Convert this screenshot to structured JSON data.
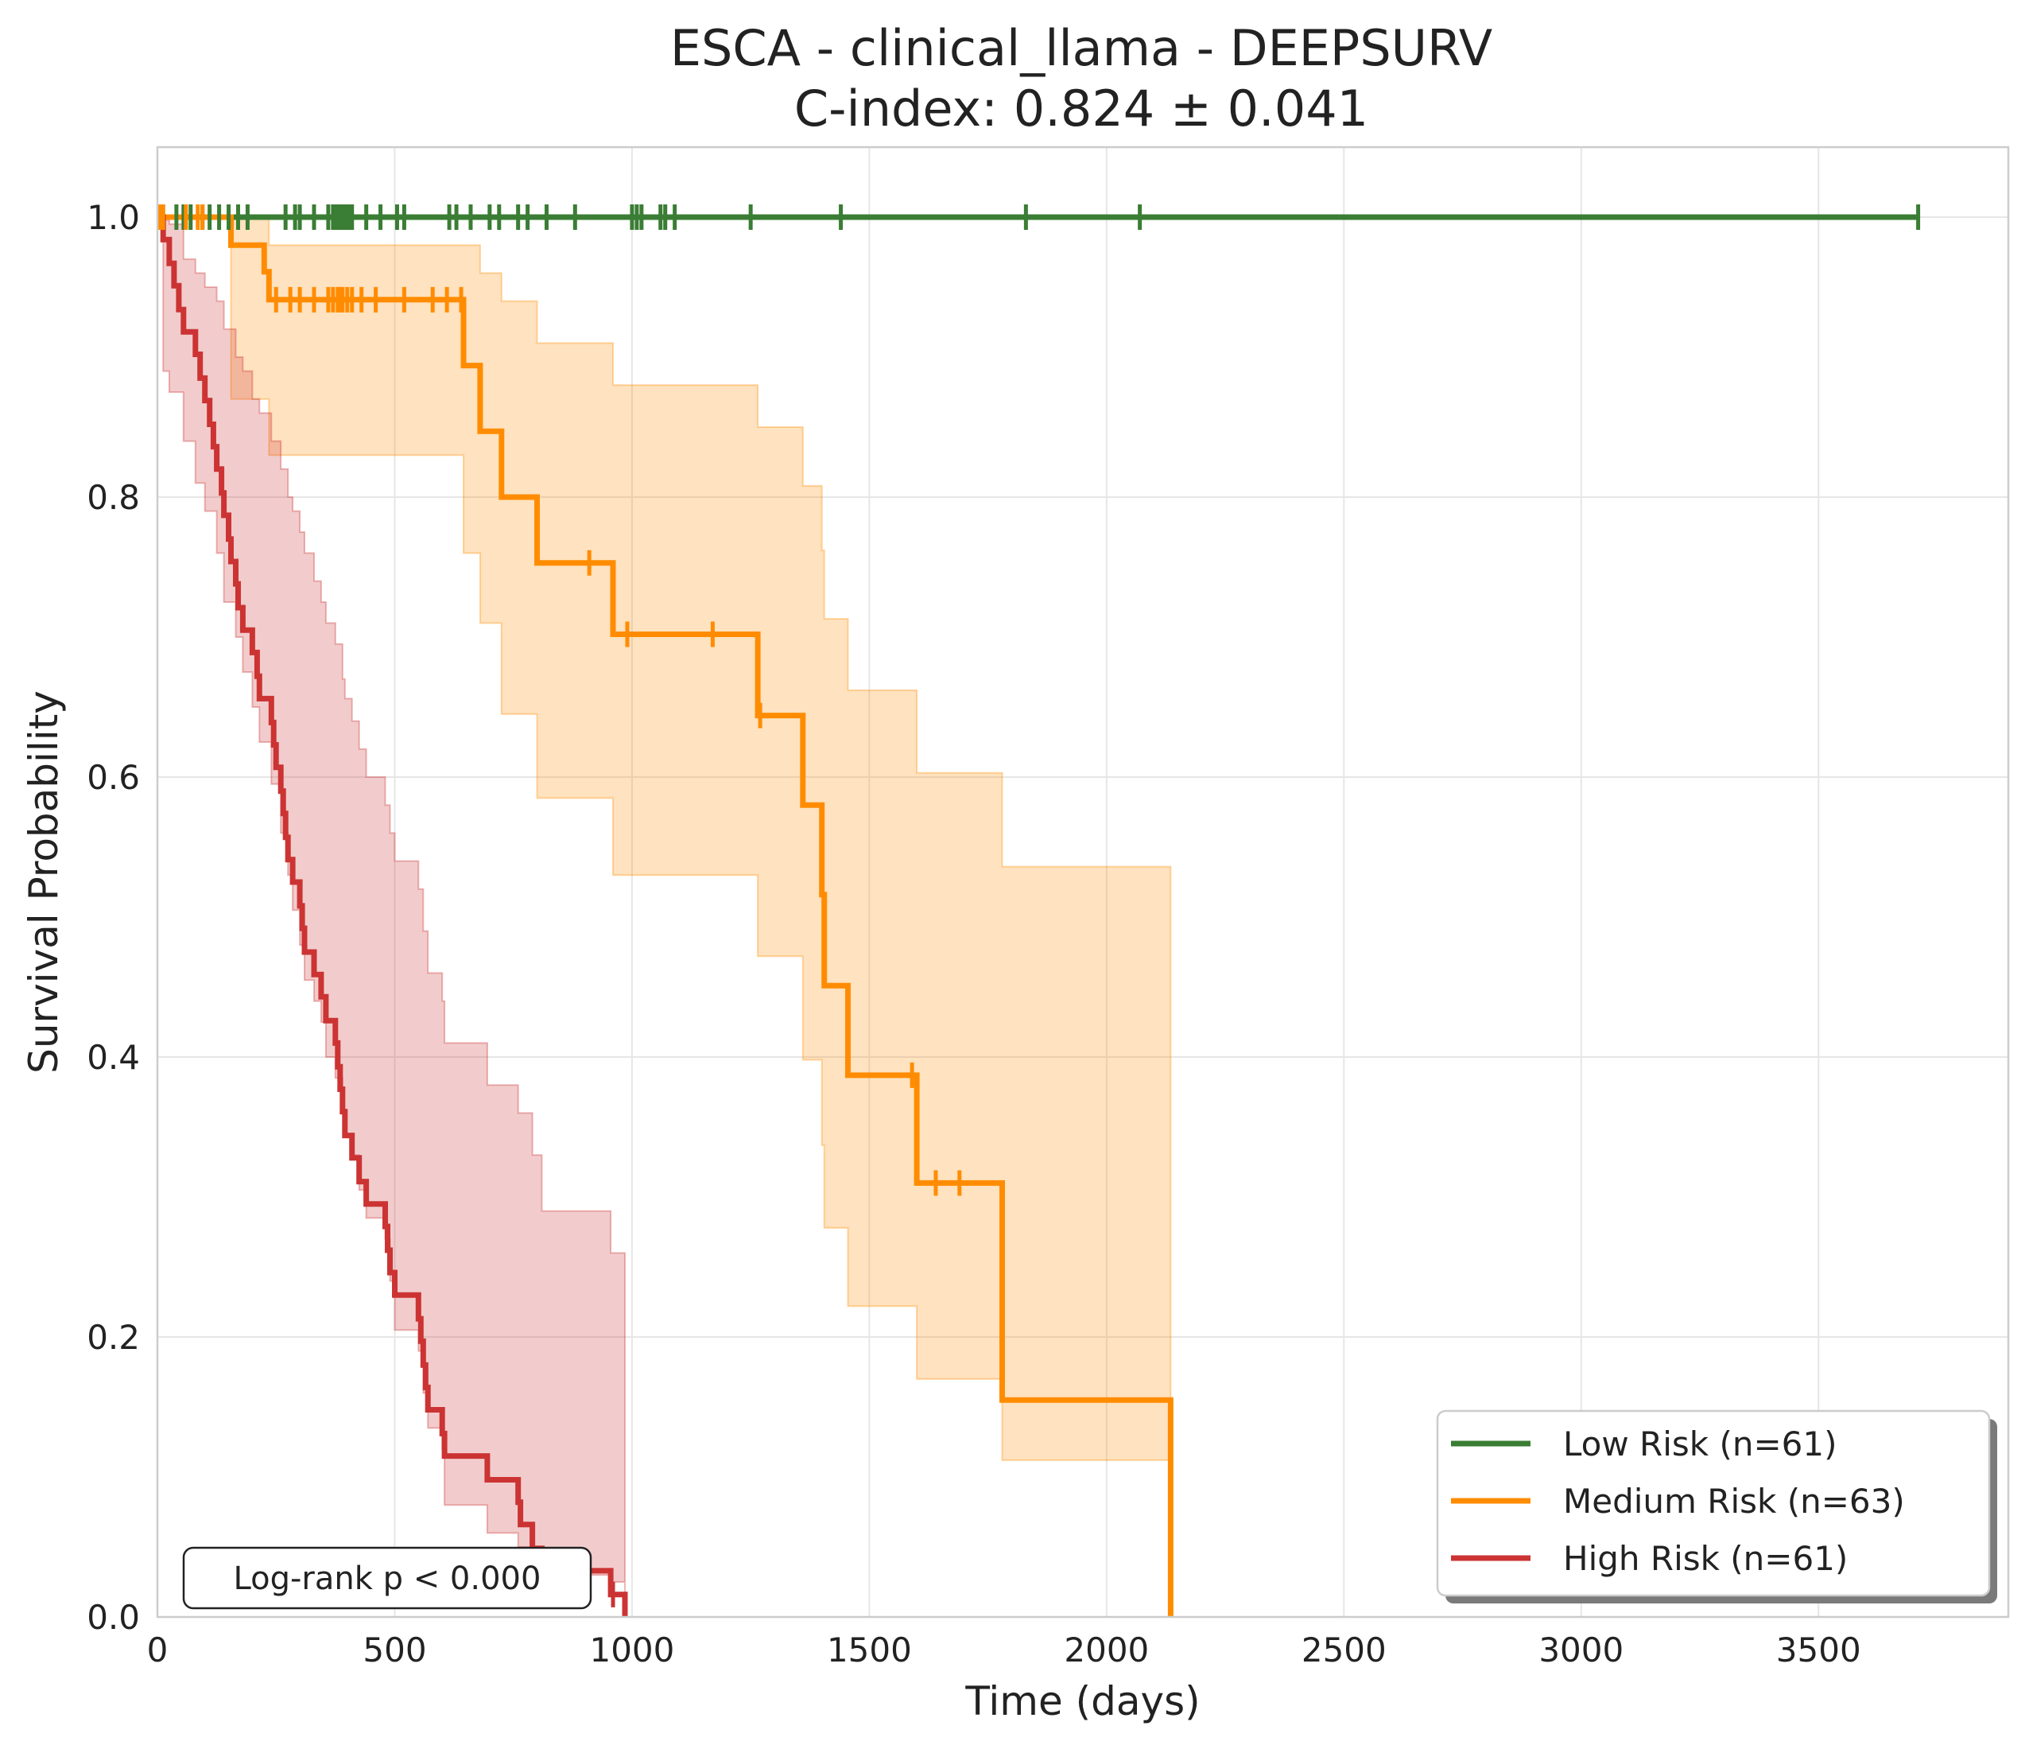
{
  "chart_data": {
    "type": "line",
    "subtype": "kaplan-meier",
    "title_line1": "ESCA - clinical_llama - DEEPSURV",
    "title_line2": "C-index: 0.824 ± 0.041",
    "xlabel": "Time (days)",
    "ylabel": "Survival Probability",
    "xlim": [
      0,
      3900
    ],
    "ylim": [
      0,
      1.05
    ],
    "xticks": [
      0,
      500,
      1000,
      1500,
      2000,
      2500,
      3000,
      3500
    ],
    "yticks": [
      0.0,
      0.2,
      0.4,
      0.6,
      0.8,
      1.0
    ],
    "xtick_labels": [
      "0",
      "500",
      "1000",
      "1500",
      "2000",
      "2500",
      "3000",
      "3500"
    ],
    "ytick_labels": [
      "0.0",
      "0.2",
      "0.4",
      "0.6",
      "0.8",
      "1.0"
    ],
    "grid": true,
    "legend_position": "lower right",
    "annotation": "Log-rank p < 0.000",
    "series": [
      {
        "name": "Low Risk (n=61)",
        "color": "#3a7d34",
        "steps": [
          [
            0,
            1.0
          ],
          [
            3710,
            1.0
          ]
        ],
        "ci": [],
        "censor_times": [
          5,
          12,
          40,
          55,
          70,
          95,
          110,
          130,
          150,
          170,
          190,
          270,
          290,
          300,
          330,
          360,
          370,
          375,
          380,
          385,
          390,
          395,
          400,
          405,
          410,
          440,
          470,
          505,
          520,
          615,
          630,
          660,
          700,
          720,
          760,
          780,
          820,
          880,
          1000,
          1010,
          1020,
          1060,
          1070,
          1090,
          1250,
          1440,
          1830,
          2070,
          3710
        ]
      },
      {
        "name": "Medium Risk (n=63)",
        "color": "#ff8c00",
        "steps": [
          [
            0,
            1.0
          ],
          [
            155,
            1.0
          ],
          [
            155,
            0.98
          ],
          [
            225,
            0.98
          ],
          [
            225,
            0.961
          ],
          [
            235,
            0.961
          ],
          [
            235,
            0.941
          ],
          [
            645,
            0.941
          ],
          [
            645,
            0.894
          ],
          [
            680,
            0.894
          ],
          [
            680,
            0.847
          ],
          [
            725,
            0.847
          ],
          [
            725,
            0.8
          ],
          [
            800,
            0.8
          ],
          [
            800,
            0.753
          ],
          [
            960,
            0.753
          ],
          [
            960,
            0.702
          ],
          [
            1265,
            0.702
          ],
          [
            1265,
            0.644
          ],
          [
            1360,
            0.644
          ],
          [
            1360,
            0.58
          ],
          [
            1400,
            0.58
          ],
          [
            1400,
            0.516
          ],
          [
            1405,
            0.516
          ],
          [
            1405,
            0.451
          ],
          [
            1455,
            0.451
          ],
          [
            1455,
            0.387
          ],
          [
            1600,
            0.387
          ],
          [
            1600,
            0.31
          ],
          [
            1780,
            0.31
          ],
          [
            1780,
            0.155
          ],
          [
            2135,
            0.155
          ],
          [
            2135,
            0.0
          ]
        ],
        "ci": [
          [
            0,
            1.0,
            1.0
          ],
          [
            155,
            0.87,
            1.0
          ],
          [
            235,
            0.83,
            0.98
          ],
          [
            645,
            0.76,
            0.98
          ],
          [
            680,
            0.71,
            0.96
          ],
          [
            725,
            0.645,
            0.94
          ],
          [
            800,
            0.585,
            0.91
          ],
          [
            960,
            0.53,
            0.88
          ],
          [
            1265,
            0.472,
            0.85
          ],
          [
            1360,
            0.398,
            0.808
          ],
          [
            1400,
            0.337,
            0.762
          ],
          [
            1405,
            0.278,
            0.713
          ],
          [
            1455,
            0.222,
            0.662
          ],
          [
            1600,
            0.17,
            0.603
          ],
          [
            1780,
            0.112,
            0.536
          ],
          [
            2135,
            0.015,
            0.448
          ]
        ],
        "censor_times": [
          5,
          12,
          60,
          85,
          95,
          250,
          280,
          300,
          330,
          360,
          370,
          380,
          385,
          390,
          400,
          410,
          430,
          460,
          520,
          580,
          610,
          640,
          910,
          990,
          1170,
          1270,
          1590,
          1640,
          1690
        ]
      },
      {
        "name": "High Risk (n=61)",
        "color": "#cc3333",
        "steps": [
          [
            0,
            1.0
          ],
          [
            12,
            1.0
          ],
          [
            12,
            0.984
          ],
          [
            25,
            0.984
          ],
          [
            25,
            0.967
          ],
          [
            35,
            0.967
          ],
          [
            35,
            0.951
          ],
          [
            45,
            0.951
          ],
          [
            45,
            0.934
          ],
          [
            55,
            0.934
          ],
          [
            55,
            0.918
          ],
          [
            80,
            0.918
          ],
          [
            80,
            0.902
          ],
          [
            90,
            0.902
          ],
          [
            90,
            0.885
          ],
          [
            100,
            0.885
          ],
          [
            100,
            0.869
          ],
          [
            110,
            0.869
          ],
          [
            110,
            0.852
          ],
          [
            118,
            0.852
          ],
          [
            118,
            0.836
          ],
          [
            125,
            0.836
          ],
          [
            125,
            0.82
          ],
          [
            135,
            0.82
          ],
          [
            135,
            0.803
          ],
          [
            140,
            0.803
          ],
          [
            140,
            0.787
          ],
          [
            150,
            0.787
          ],
          [
            150,
            0.77
          ],
          [
            155,
            0.77
          ],
          [
            155,
            0.754
          ],
          [
            165,
            0.754
          ],
          [
            165,
            0.738
          ],
          [
            170,
            0.738
          ],
          [
            170,
            0.721
          ],
          [
            180,
            0.721
          ],
          [
            180,
            0.705
          ],
          [
            200,
            0.705
          ],
          [
            200,
            0.689
          ],
          [
            210,
            0.689
          ],
          [
            210,
            0.672
          ],
          [
            215,
            0.672
          ],
          [
            215,
            0.656
          ],
          [
            240,
            0.656
          ],
          [
            240,
            0.639
          ],
          [
            245,
            0.639
          ],
          [
            245,
            0.623
          ],
          [
            250,
            0.623
          ],
          [
            250,
            0.607
          ],
          [
            260,
            0.607
          ],
          [
            260,
            0.59
          ],
          [
            265,
            0.59
          ],
          [
            265,
            0.574
          ],
          [
            270,
            0.574
          ],
          [
            270,
            0.557
          ],
          [
            275,
            0.557
          ],
          [
            275,
            0.541
          ],
          [
            285,
            0.541
          ],
          [
            285,
            0.525
          ],
          [
            300,
            0.525
          ],
          [
            300,
            0.508
          ],
          [
            305,
            0.508
          ],
          [
            305,
            0.492
          ],
          [
            310,
            0.492
          ],
          [
            310,
            0.475
          ],
          [
            330,
            0.475
          ],
          [
            330,
            0.459
          ],
          [
            345,
            0.459
          ],
          [
            345,
            0.443
          ],
          [
            355,
            0.443
          ],
          [
            355,
            0.426
          ],
          [
            375,
            0.426
          ],
          [
            375,
            0.41
          ],
          [
            380,
            0.41
          ],
          [
            380,
            0.393
          ],
          [
            385,
            0.393
          ],
          [
            385,
            0.377
          ],
          [
            390,
            0.377
          ],
          [
            390,
            0.361
          ],
          [
            395,
            0.361
          ],
          [
            395,
            0.344
          ],
          [
            410,
            0.344
          ],
          [
            410,
            0.328
          ],
          [
            425,
            0.328
          ],
          [
            425,
            0.311
          ],
          [
            440,
            0.311
          ],
          [
            440,
            0.295
          ],
          [
            480,
            0.295
          ],
          [
            480,
            0.279
          ],
          [
            485,
            0.279
          ],
          [
            485,
            0.262
          ],
          [
            490,
            0.262
          ],
          [
            490,
            0.246
          ],
          [
            500,
            0.246
          ],
          [
            500,
            0.23
          ],
          [
            550,
            0.23
          ],
          [
            550,
            0.213
          ],
          [
            555,
            0.213
          ],
          [
            555,
            0.197
          ],
          [
            560,
            0.197
          ],
          [
            560,
            0.18
          ],
          [
            565,
            0.18
          ],
          [
            565,
            0.164
          ],
          [
            570,
            0.164
          ],
          [
            570,
            0.148
          ],
          [
            600,
            0.148
          ],
          [
            600,
            0.131
          ],
          [
            605,
            0.131
          ],
          [
            605,
            0.115
          ],
          [
            695,
            0.115
          ],
          [
            695,
            0.098
          ],
          [
            760,
            0.098
          ],
          [
            760,
            0.082
          ],
          [
            765,
            0.082
          ],
          [
            765,
            0.066
          ],
          [
            790,
            0.066
          ],
          [
            790,
            0.049
          ],
          [
            810,
            0.049
          ],
          [
            810,
            0.033
          ],
          [
            955,
            0.033
          ],
          [
            955,
            0.016
          ],
          [
            985,
            0.016
          ],
          [
            985,
            0.0
          ]
        ],
        "ci": [
          [
            0,
            1.0,
            1.0
          ],
          [
            12,
            0.89,
            0.998
          ],
          [
            25,
            0.875,
            0.995
          ],
          [
            55,
            0.84,
            0.97
          ],
          [
            80,
            0.81,
            0.96
          ],
          [
            100,
            0.79,
            0.95
          ],
          [
            125,
            0.76,
            0.94
          ],
          [
            140,
            0.725,
            0.92
          ],
          [
            165,
            0.7,
            0.9
          ],
          [
            180,
            0.675,
            0.89
          ],
          [
            200,
            0.65,
            0.87
          ],
          [
            215,
            0.625,
            0.86
          ],
          [
            240,
            0.595,
            0.84
          ],
          [
            260,
            0.56,
            0.82
          ],
          [
            275,
            0.53,
            0.8
          ],
          [
            285,
            0.505,
            0.79
          ],
          [
            300,
            0.48,
            0.775
          ],
          [
            310,
            0.455,
            0.76
          ],
          [
            330,
            0.44,
            0.74
          ],
          [
            345,
            0.425,
            0.725
          ],
          [
            355,
            0.4,
            0.71
          ],
          [
            375,
            0.385,
            0.695
          ],
          [
            390,
            0.36,
            0.67
          ],
          [
            395,
            0.345,
            0.656
          ],
          [
            410,
            0.33,
            0.64
          ],
          [
            425,
            0.305,
            0.62
          ],
          [
            440,
            0.285,
            0.6
          ],
          [
            480,
            0.27,
            0.58
          ],
          [
            490,
            0.24,
            0.56
          ],
          [
            500,
            0.205,
            0.54
          ],
          [
            550,
            0.19,
            0.52
          ],
          [
            560,
            0.16,
            0.49
          ],
          [
            570,
            0.135,
            0.46
          ],
          [
            600,
            0.12,
            0.44
          ],
          [
            605,
            0.08,
            0.41
          ],
          [
            695,
            0.06,
            0.38
          ],
          [
            760,
            0.05,
            0.36
          ],
          [
            790,
            0.04,
            0.33
          ],
          [
            810,
            0.03,
            0.29
          ],
          [
            955,
            0.025,
            0.26
          ],
          [
            985,
            0.0,
            0.23
          ]
        ],
        "censor_times": [
          960
        ]
      }
    ]
  }
}
